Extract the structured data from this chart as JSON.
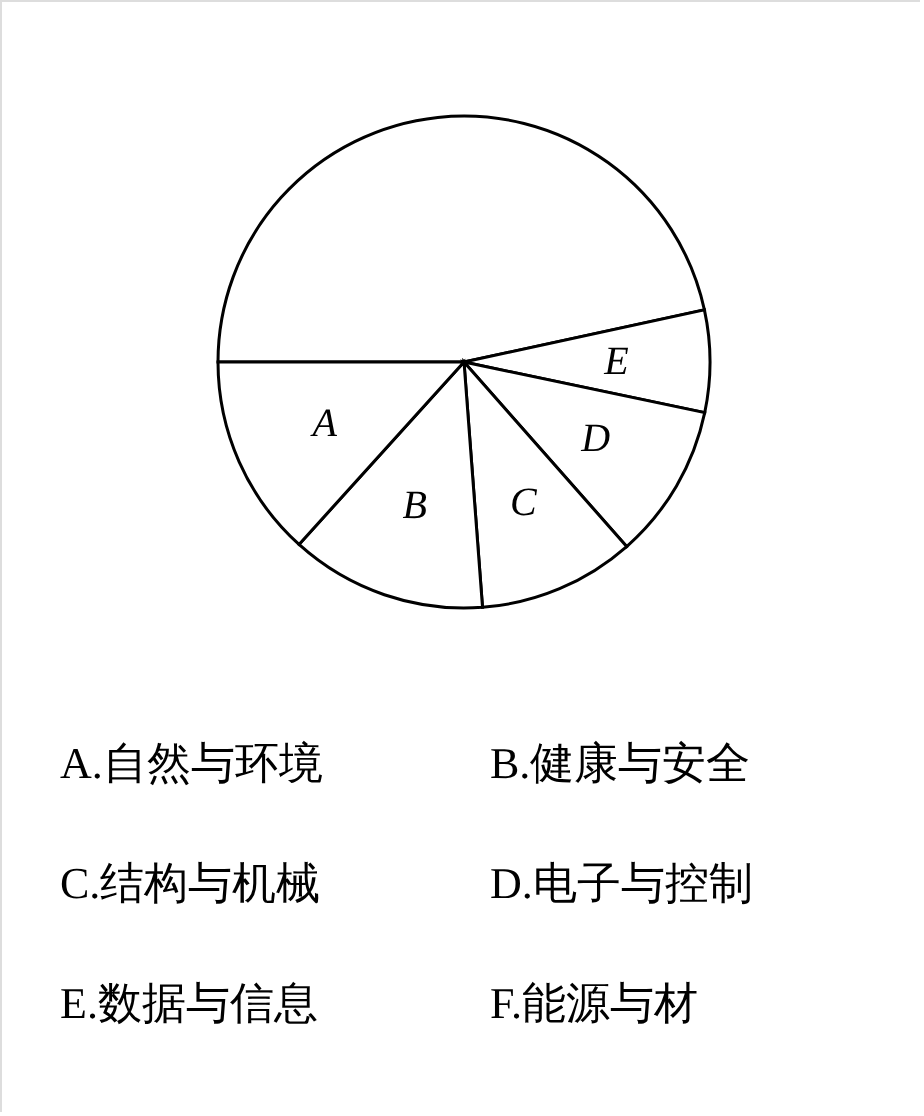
{
  "chart_data": {
    "type": "pie",
    "categories": [
      null,
      "E",
      "D",
      "C",
      "B",
      "A"
    ],
    "values": [
      46.6,
      6.7,
      10.2,
      10.3,
      12.9,
      13.3
    ],
    "colors": [
      "#ffffff",
      "#ffffff",
      "#ffffff",
      "#ffffff",
      "#ffffff",
      "#ffffff"
    ],
    "legend": false,
    "annotations": [
      "A.自然与环境",
      "B.健康与安全",
      "C.结构与机械",
      "D.电子与控制",
      "E.数据与信息",
      "F.能源与材"
    ]
  }
}
